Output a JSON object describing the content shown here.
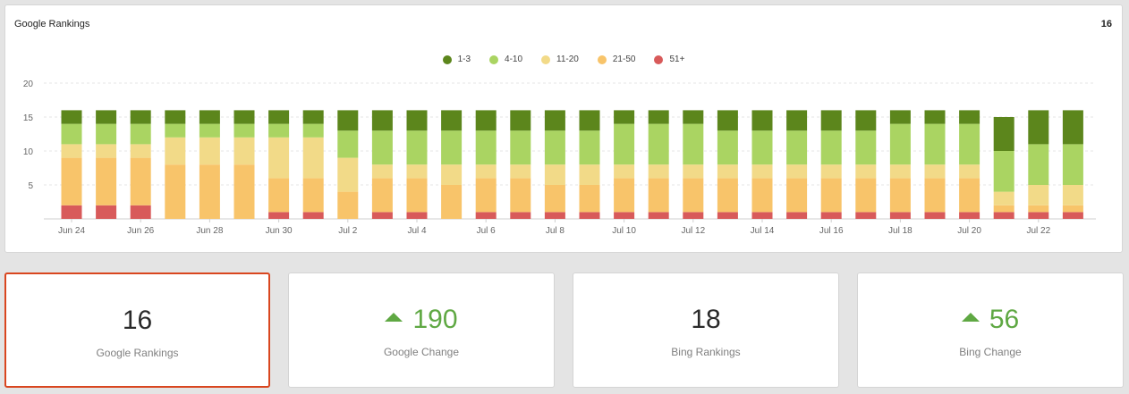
{
  "panel": {
    "title": "Google Rankings",
    "count": "16"
  },
  "legend": [
    {
      "label": "1-3",
      "color": "#5c861c"
    },
    {
      "label": "4-10",
      "color": "#aad462"
    },
    {
      "label": "11-20",
      "color": "#f2da88"
    },
    {
      "label": "21-50",
      "color": "#f8c46a"
    },
    {
      "label": "51+",
      "color": "#d85a5a"
    }
  ],
  "chart_data": {
    "type": "bar",
    "stacked": true,
    "title": "",
    "xlabel": "",
    "ylabel": "",
    "ylim": [
      0,
      20
    ],
    "yticks": [
      5,
      10,
      15,
      20
    ],
    "grid": true,
    "legend_position": "top",
    "categories": [
      "Jun 24",
      "Jun 25",
      "Jun 26",
      "Jun 27",
      "Jun 28",
      "Jun 29",
      "Jun 30",
      "Jul 1",
      "Jul 2",
      "Jul 3",
      "Jul 4",
      "Jul 5",
      "Jul 6",
      "Jul 7",
      "Jul 8",
      "Jul 9",
      "Jul 10",
      "Jul 11",
      "Jul 12",
      "Jul 13",
      "Jul 14",
      "Jul 15",
      "Jul 16",
      "Jul 17",
      "Jul 18",
      "Jul 19",
      "Jul 20",
      "Jul 21",
      "Jul 22",
      "Jul 23"
    ],
    "tick_labels": [
      "Jun 24",
      "",
      "Jun 26",
      "",
      "Jun 28",
      "",
      "Jun 30",
      "",
      "Jul 2",
      "",
      "Jul 4",
      "",
      "Jul 6",
      "",
      "Jul 8",
      "",
      "Jul 10",
      "",
      "Jul 12",
      "",
      "Jul 14",
      "",
      "Jul 16",
      "",
      "Jul 18",
      "",
      "Jul 20",
      "",
      "Jul 22",
      ""
    ],
    "series": [
      {
        "name": "51+",
        "color": "#d85a5a",
        "values": [
          2,
          2,
          2,
          0,
          0,
          0,
          1,
          1,
          0,
          1,
          1,
          0,
          1,
          1,
          1,
          1,
          1,
          1,
          1,
          1,
          1,
          1,
          1,
          1,
          1,
          1,
          1,
          1,
          1,
          1
        ]
      },
      {
        "name": "21-50",
        "color": "#f8c46a",
        "values": [
          7,
          7,
          7,
          8,
          8,
          8,
          5,
          5,
          4,
          5,
          5,
          5,
          5,
          5,
          4,
          4,
          5,
          5,
          5,
          5,
          5,
          5,
          5,
          5,
          5,
          5,
          5,
          1,
          1,
          1
        ]
      },
      {
        "name": "11-20",
        "color": "#f2da88",
        "values": [
          2,
          2,
          2,
          4,
          4,
          4,
          6,
          6,
          5,
          2,
          2,
          3,
          2,
          2,
          3,
          3,
          2,
          2,
          2,
          2,
          2,
          2,
          2,
          2,
          2,
          2,
          2,
          2,
          3,
          3
        ]
      },
      {
        "name": "4-10",
        "color": "#aad462",
        "values": [
          3,
          3,
          3,
          2,
          2,
          2,
          2,
          2,
          4,
          5,
          5,
          5,
          5,
          5,
          5,
          5,
          6,
          6,
          6,
          5,
          5,
          5,
          5,
          5,
          6,
          6,
          6,
          6,
          6,
          6
        ]
      },
      {
        "name": "1-3",
        "color": "#5c861c",
        "values": [
          2,
          2,
          2,
          2,
          2,
          2,
          2,
          2,
          3,
          3,
          3,
          3,
          3,
          3,
          3,
          3,
          2,
          2,
          2,
          3,
          3,
          3,
          3,
          3,
          2,
          2,
          2,
          5,
          5,
          5
        ]
      }
    ]
  },
  "cards": [
    {
      "value": "16",
      "label": "Google Rankings",
      "trend": ""
    },
    {
      "value": "190",
      "label": "Google Change",
      "trend": "up"
    },
    {
      "value": "18",
      "label": "Bing Rankings",
      "trend": ""
    },
    {
      "value": "56",
      "label": "Bing Change",
      "trend": "up"
    }
  ]
}
